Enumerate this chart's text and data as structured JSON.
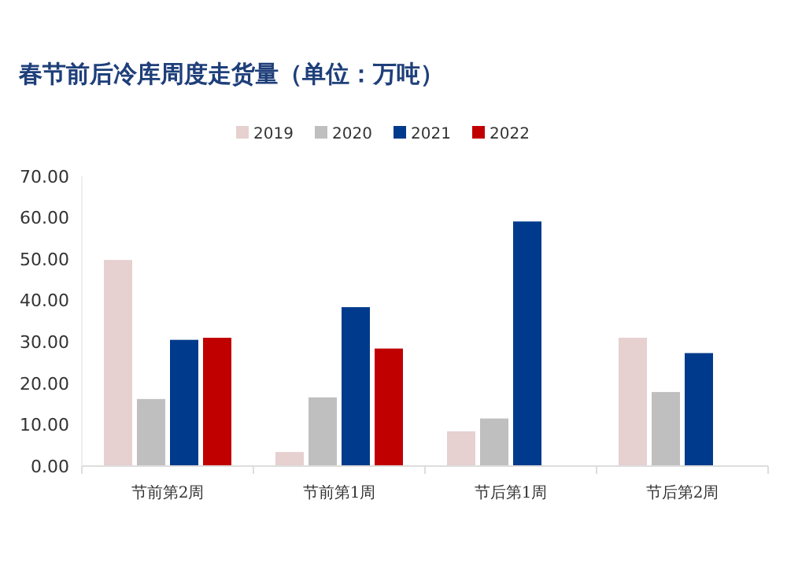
{
  "chart_data": {
    "type": "bar",
    "title": "春节前后冷库周度走货量（单位：万吨）",
    "categories": [
      "节前第2周",
      "节前第1周",
      "节后第1周",
      "节后第2周"
    ],
    "series": [
      {
        "name": "2019",
        "color": "#e6d0d0",
        "values": [
          49.8,
          3.4,
          8.4,
          31
        ]
      },
      {
        "name": "2020",
        "color": "#bfbfbf",
        "values": [
          16.2,
          16.6,
          11.5,
          17.9
        ]
      },
      {
        "name": "2021",
        "color": "#003a8c",
        "values": [
          30.5,
          38.4,
          59.1,
          27.3
        ]
      },
      {
        "name": "2022",
        "color": "#c00000",
        "values": [
          31,
          28.4,
          null,
          null
        ]
      }
    ],
    "ylim": [
      0,
      70
    ],
    "yticks": [
      {
        "value": 0,
        "label": "0.00"
      },
      {
        "value": 10,
        "label": "10.00"
      },
      {
        "value": 20,
        "label": "20.00"
      },
      {
        "value": 30,
        "label": "30.00"
      },
      {
        "value": 40,
        "label": "40.00"
      },
      {
        "value": 50,
        "label": "50.00"
      },
      {
        "value": 60,
        "label": "60.00"
      },
      {
        "value": 70,
        "label": "70.00"
      }
    ],
    "legend": "top",
    "grid": false
  }
}
